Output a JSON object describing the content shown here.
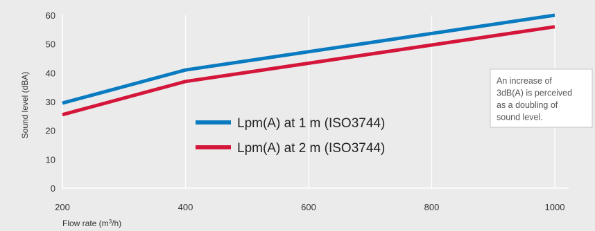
{
  "chart_data": {
    "type": "line",
    "x": [
      200,
      400,
      1000
    ],
    "xticks": [
      200,
      400,
      600,
      800,
      1000
    ],
    "yticks": [
      0,
      10,
      20,
      30,
      40,
      50,
      60
    ],
    "xlim": [
      200,
      1000
    ],
    "ylim": [
      0,
      60
    ],
    "xlabel": "Flow rate (m³/h)",
    "ylabel": "Sound level (dBA)",
    "grid": "vertical",
    "series": [
      {
        "name": "Lpm(A) at 1 m (ISO3744)",
        "color": "#0a7bc0",
        "values": [
          29.5,
          41,
          60
        ]
      },
      {
        "name": "Lpm(A) at 2 m (ISO3744)",
        "color": "#d4163a",
        "values": [
          25.5,
          37,
          56
        ]
      }
    ],
    "legend_position": "center",
    "annotation": [
      "An increase of",
      "3dB(A) is perceived",
      "as a doubling of",
      "sound level."
    ]
  }
}
